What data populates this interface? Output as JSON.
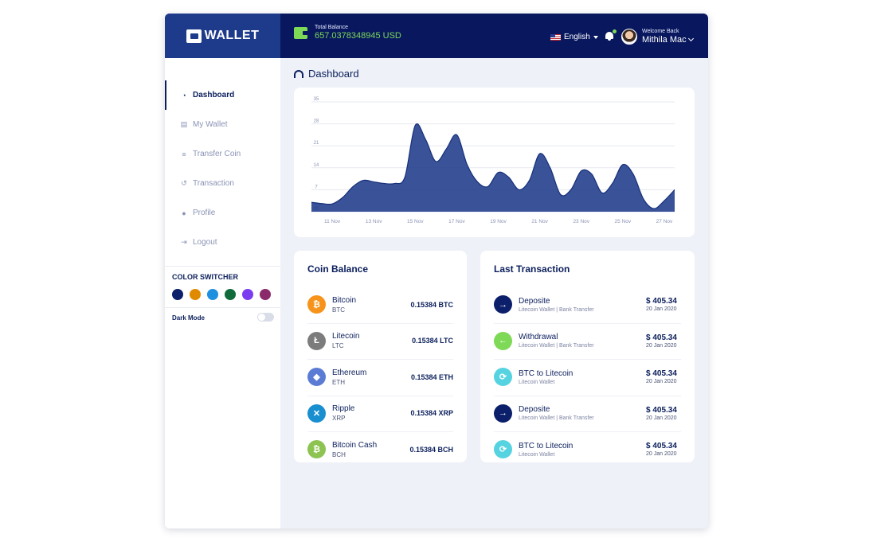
{
  "brand": {
    "name": "WALLET"
  },
  "header": {
    "balance_label": "Total Balance",
    "balance_value": "657.0378348945 USD",
    "language": "English",
    "welcome": "Welcome Back",
    "user_name": "Mithila Mac"
  },
  "sidebar": {
    "items": [
      {
        "label": "Dashboard",
        "icon": "gauge-icon"
      },
      {
        "label": "My Wallet",
        "icon": "wallet-icon"
      },
      {
        "label": "Transfer Coin",
        "icon": "coins-icon"
      },
      {
        "label": "Transaction",
        "icon": "history-icon"
      },
      {
        "label": "Profile",
        "icon": "user-icon"
      },
      {
        "label": "Logout",
        "icon": "logout-icon"
      }
    ],
    "color_switcher_title": "COLOR SWITCHER",
    "colors": [
      "#0b1f6b",
      "#e08a00",
      "#1e90e0",
      "#0f6b3a",
      "#7b3cf0",
      "#8b2a6b"
    ],
    "dark_mode_label": "Dark Mode",
    "dark_mode_on": false
  },
  "page": {
    "title": "Dashboard"
  },
  "chart_data": {
    "type": "area",
    "x": [
      "10 Nov",
      "10.5 Nov",
      "11 Nov",
      "11.5 Nov",
      "12 Nov",
      "12.5 Nov",
      "13 Nov",
      "13.5 Nov",
      "14 Nov",
      "14.5 Nov",
      "15 Nov",
      "15.5 Nov",
      "16 Nov",
      "16.5 Nov",
      "17 Nov",
      "17.5 Nov",
      "18 Nov",
      "18.5 Nov",
      "19 Nov",
      "19.5 Nov",
      "20 Nov",
      "20.5 Nov",
      "21 Nov",
      "21.5 Nov",
      "22 Nov",
      "22.5 Nov",
      "23 Nov",
      "23.5 Nov",
      "24 Nov",
      "24.5 Nov",
      "25 Nov",
      "25.5 Nov",
      "26 Nov",
      "26.5 Nov",
      "27 Nov",
      "27.5 Nov"
    ],
    "xticks": [
      "11 Nov",
      "13 Nov",
      "15 Nov",
      "17 Nov",
      "19 Nov",
      "21 Nov",
      "23 Nov",
      "25 Nov",
      "27 Nov"
    ],
    "values": [
      3,
      2.6,
      2.5,
      4.5,
      8,
      10,
      9.5,
      9,
      9,
      11,
      27.5,
      23,
      16,
      20,
      24.5,
      15,
      9.5,
      8,
      12.5,
      11,
      7,
      10,
      18.5,
      14,
      5.5,
      7,
      13,
      12,
      6,
      9,
      15,
      12,
      4,
      1,
      3.5,
      7
    ],
    "yticks": [
      0,
      7,
      14,
      21,
      28,
      35
    ],
    "ylim": [
      0,
      35
    ],
    "color": "#1e3a8a",
    "grid": true
  },
  "coins": {
    "title": "Coin Balance",
    "items": [
      {
        "name": "Bitcoin",
        "symbol": "BTC",
        "amount": "0.15384 BTC",
        "color": "#f7931a",
        "glyph": "₿"
      },
      {
        "name": "Litecoin",
        "symbol": "LTC",
        "amount": "0.15384 LTC",
        "color": "#7c7c7c",
        "glyph": "Ł"
      },
      {
        "name": "Ethereum",
        "symbol": "ETH",
        "amount": "0.15384 ETH",
        "color": "#5b7bd5",
        "glyph": "◆"
      },
      {
        "name": "Ripple",
        "symbol": "XRP",
        "amount": "0.15384 XRP",
        "color": "#1a8fd0",
        "glyph": "✕"
      },
      {
        "name": "Bitcoin Cash",
        "symbol": "BCH",
        "amount": "0.15384 BCH",
        "color": "#8dc351",
        "glyph": "₿"
      }
    ]
  },
  "transactions": {
    "title": "Last Transaction",
    "items": [
      {
        "type": "Deposite",
        "detail": "Litecoin Wallet | Bank Transfer",
        "amount": "$ 405.34",
        "date": "20 Jan 2020",
        "color": "#0b1f6b",
        "glyph": "→"
      },
      {
        "type": "Withdrawal",
        "detail": "Litecoin Wallet | Bank Transfer",
        "amount": "$ 405.34",
        "date": "20 Jan 2020",
        "color": "#7ed957",
        "glyph": "←"
      },
      {
        "type": "BTC to Litecoin",
        "detail": "Litecoin Wallet",
        "amount": "$ 405.34",
        "date": "20 Jan 2020",
        "color": "#56d3e0",
        "glyph": "⟳"
      },
      {
        "type": "Deposite",
        "detail": "Litecoin Wallet | Bank Transfer",
        "amount": "$ 405.34",
        "date": "20 Jan 2020",
        "color": "#0b1f6b",
        "glyph": "→"
      },
      {
        "type": "BTC to Litecoin",
        "detail": "Litecoin Wallet",
        "amount": "$ 405.34",
        "date": "20 Jan 2020",
        "color": "#56d3e0",
        "glyph": "⟳"
      }
    ]
  }
}
